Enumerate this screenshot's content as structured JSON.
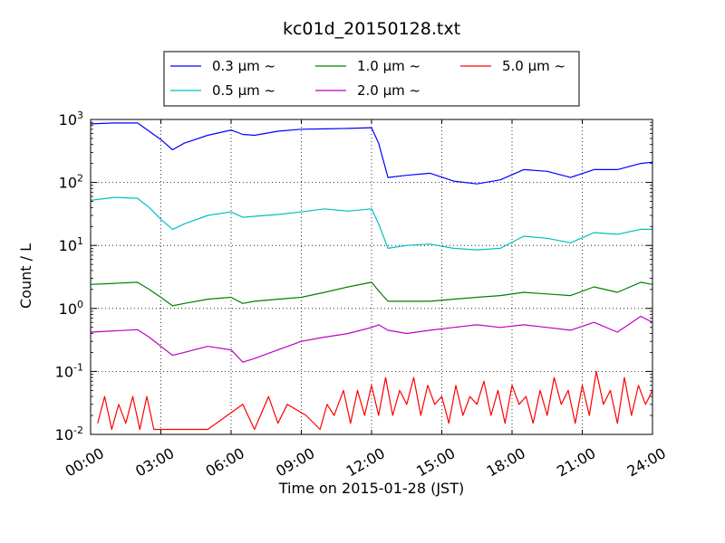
{
  "chart_data": {
    "type": "line",
    "title": "kc01d_20150128.txt",
    "xlabel": "Time on 2015-01-28 (JST)",
    "ylabel": "Count / L",
    "x_unit": "hours",
    "xlim": [
      0,
      24
    ],
    "x_ticks": [
      0,
      3,
      6,
      9,
      12,
      15,
      18,
      21,
      24
    ],
    "x_tick_labels": [
      "00:00",
      "03:00",
      "06:00",
      "09:00",
      "12:00",
      "15:00",
      "18:00",
      "21:00",
      "24:00"
    ],
    "ylim": [
      0.01,
      1000
    ],
    "y_scale": "log",
    "y_ticks": [
      0.01,
      0.1,
      1,
      10,
      100,
      1000
    ],
    "y_tick_labels": [
      {
        "base": "10",
        "exp": "-2"
      },
      {
        "base": "10",
        "exp": "-1"
      },
      {
        "base": "10",
        "exp": "0"
      },
      {
        "base": "10",
        "exp": "1"
      },
      {
        "base": "10",
        "exp": "2"
      },
      {
        "base": "10",
        "exp": "3"
      }
    ],
    "grid": true,
    "legend_position": "top",
    "series": [
      {
        "name": "0.3 μm ~",
        "color": "#0000ff",
        "points": [
          [
            0,
            850
          ],
          [
            1,
            880
          ],
          [
            2,
            880
          ],
          [
            2.5,
            650
          ],
          [
            3,
            480
          ],
          [
            3.5,
            330
          ],
          [
            4,
            420
          ],
          [
            5,
            560
          ],
          [
            6,
            680
          ],
          [
            6.5,
            580
          ],
          [
            7,
            560
          ],
          [
            8,
            650
          ],
          [
            9,
            700
          ],
          [
            10,
            710
          ],
          [
            11,
            720
          ],
          [
            12,
            740
          ],
          [
            12.3,
            420
          ],
          [
            12.7,
            120
          ],
          [
            13.5,
            130
          ],
          [
            14.5,
            140
          ],
          [
            15.5,
            105
          ],
          [
            16.5,
            95
          ],
          [
            17.5,
            110
          ],
          [
            18.5,
            160
          ],
          [
            19.5,
            150
          ],
          [
            20.5,
            120
          ],
          [
            21.5,
            160
          ],
          [
            22.5,
            160
          ],
          [
            23.5,
            200
          ],
          [
            24,
            210
          ]
        ]
      },
      {
        "name": "0.5 μm ~",
        "color": "#00bfbf",
        "points": [
          [
            0,
            52
          ],
          [
            1,
            58
          ],
          [
            2,
            56
          ],
          [
            2.5,
            40
          ],
          [
            3,
            26
          ],
          [
            3.5,
            18
          ],
          [
            4,
            22
          ],
          [
            5,
            30
          ],
          [
            6,
            34
          ],
          [
            6.5,
            28
          ],
          [
            7,
            29
          ],
          [
            8,
            31
          ],
          [
            9,
            34
          ],
          [
            10,
            38
          ],
          [
            11,
            35
          ],
          [
            12,
            38
          ],
          [
            12.3,
            22
          ],
          [
            12.7,
            9
          ],
          [
            13.5,
            10
          ],
          [
            14.5,
            10.5
          ],
          [
            15.5,
            9
          ],
          [
            16.5,
            8.5
          ],
          [
            17.5,
            9
          ],
          [
            18.5,
            14
          ],
          [
            19.5,
            13
          ],
          [
            20.5,
            11
          ],
          [
            21.5,
            16
          ],
          [
            22.5,
            15
          ],
          [
            23.5,
            18
          ],
          [
            24,
            18
          ]
        ]
      },
      {
        "name": "1.0 μm ~",
        "color": "#008000",
        "points": [
          [
            0,
            2.4
          ],
          [
            1,
            2.5
          ],
          [
            2,
            2.6
          ],
          [
            2.5,
            2.0
          ],
          [
            3,
            1.5
          ],
          [
            3.5,
            1.1
          ],
          [
            4,
            1.2
          ],
          [
            5,
            1.4
          ],
          [
            6,
            1.5
          ],
          [
            6.5,
            1.2
          ],
          [
            7,
            1.3
          ],
          [
            8,
            1.4
          ],
          [
            9,
            1.5
          ],
          [
            10,
            1.8
          ],
          [
            11,
            2.2
          ],
          [
            12,
            2.6
          ],
          [
            12.3,
            1.9
          ],
          [
            12.7,
            1.3
          ],
          [
            13.5,
            1.3
          ],
          [
            14.5,
            1.3
          ],
          [
            15.5,
            1.4
          ],
          [
            16.5,
            1.5
          ],
          [
            17.5,
            1.6
          ],
          [
            18.5,
            1.8
          ],
          [
            19.5,
            1.7
          ],
          [
            20.5,
            1.6
          ],
          [
            21.5,
            2.2
          ],
          [
            22.5,
            1.8
          ],
          [
            23.5,
            2.6
          ],
          [
            24,
            2.4
          ]
        ]
      },
      {
        "name": "2.0 μm ~",
        "color": "#bf00bf",
        "points": [
          [
            0,
            0.42
          ],
          [
            1,
            0.44
          ],
          [
            2,
            0.46
          ],
          [
            2.5,
            0.35
          ],
          [
            3,
            0.25
          ],
          [
            3.5,
            0.18
          ],
          [
            4,
            0.2
          ],
          [
            5,
            0.25
          ],
          [
            6,
            0.22
          ],
          [
            6.5,
            0.14
          ],
          [
            7,
            0.16
          ],
          [
            8,
            0.22
          ],
          [
            9,
            0.3
          ],
          [
            10,
            0.35
          ],
          [
            11,
            0.4
          ],
          [
            12,
            0.5
          ],
          [
            12.3,
            0.55
          ],
          [
            12.7,
            0.45
          ],
          [
            13.5,
            0.4
          ],
          [
            14.5,
            0.45
          ],
          [
            15.5,
            0.5
          ],
          [
            16.5,
            0.55
          ],
          [
            17.5,
            0.5
          ],
          [
            18.5,
            0.55
          ],
          [
            19.5,
            0.5
          ],
          [
            20.5,
            0.45
          ],
          [
            21.5,
            0.6
          ],
          [
            22.5,
            0.42
          ],
          [
            23.5,
            0.75
          ],
          [
            24,
            0.6
          ]
        ]
      },
      {
        "name": "5.0 μm ~",
        "color": "#ff0000",
        "points": [
          [
            0.3,
            0.015
          ],
          [
            0.6,
            0.04
          ],
          [
            0.9,
            0.012
          ],
          [
            1.2,
            0.03
          ],
          [
            1.5,
            0.015
          ],
          [
            1.8,
            0.04
          ],
          [
            2.1,
            0.012
          ],
          [
            2.4,
            0.04
          ],
          [
            2.7,
            0.012
          ],
          [
            3.0,
            0.012
          ],
          [
            3.5,
            0.012
          ],
          [
            4.0,
            0.012
          ],
          [
            4.5,
            0.012
          ],
          [
            5.0,
            0.012
          ],
          [
            6.5,
            0.03
          ],
          [
            7.0,
            0.012
          ],
          [
            7.6,
            0.04
          ],
          [
            8.0,
            0.015
          ],
          [
            8.4,
            0.03
          ],
          [
            9.2,
            0.02
          ],
          [
            9.8,
            0.012
          ],
          [
            10.1,
            0.03
          ],
          [
            10.4,
            0.02
          ],
          [
            10.8,
            0.05
          ],
          [
            11.1,
            0.015
          ],
          [
            11.4,
            0.05
          ],
          [
            11.7,
            0.02
          ],
          [
            12.0,
            0.06
          ],
          [
            12.3,
            0.02
          ],
          [
            12.6,
            0.08
          ],
          [
            12.9,
            0.02
          ],
          [
            13.2,
            0.05
          ],
          [
            13.5,
            0.03
          ],
          [
            13.8,
            0.08
          ],
          [
            14.1,
            0.02
          ],
          [
            14.4,
            0.06
          ],
          [
            14.7,
            0.03
          ],
          [
            15.0,
            0.04
          ],
          [
            15.3,
            0.015
          ],
          [
            15.6,
            0.06
          ],
          [
            15.9,
            0.02
          ],
          [
            16.2,
            0.04
          ],
          [
            16.5,
            0.03
          ],
          [
            16.8,
            0.07
          ],
          [
            17.1,
            0.02
          ],
          [
            17.4,
            0.05
          ],
          [
            17.7,
            0.015
          ],
          [
            18.0,
            0.06
          ],
          [
            18.3,
            0.03
          ],
          [
            18.6,
            0.04
          ],
          [
            18.9,
            0.015
          ],
          [
            19.2,
            0.05
          ],
          [
            19.5,
            0.02
          ],
          [
            19.8,
            0.08
          ],
          [
            20.1,
            0.03
          ],
          [
            20.4,
            0.05
          ],
          [
            20.7,
            0.015
          ],
          [
            21.0,
            0.06
          ],
          [
            21.3,
            0.02
          ],
          [
            21.6,
            0.1
          ],
          [
            21.9,
            0.03
          ],
          [
            22.2,
            0.05
          ],
          [
            22.5,
            0.015
          ],
          [
            22.8,
            0.08
          ],
          [
            23.1,
            0.02
          ],
          [
            23.4,
            0.06
          ],
          [
            23.7,
            0.03
          ],
          [
            24.0,
            0.05
          ]
        ]
      }
    ]
  }
}
